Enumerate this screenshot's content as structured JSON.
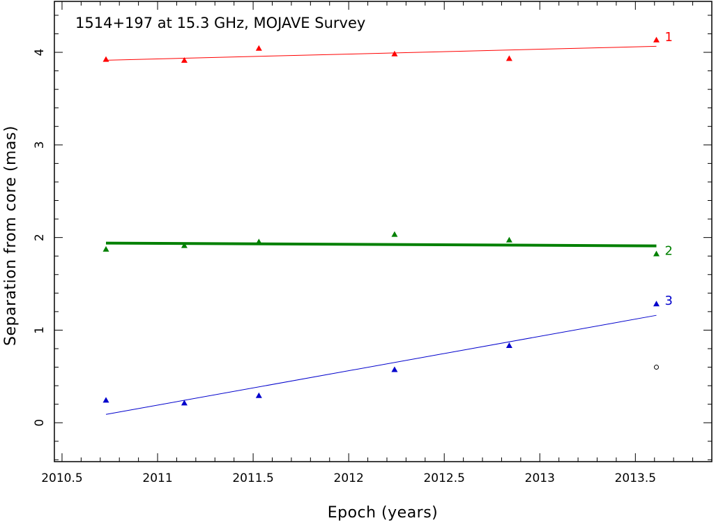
{
  "chart_data": {
    "type": "scatter",
    "title": "1514+197 at 15.3 GHz, MOJAVE Survey",
    "xlabel": "Epoch (years)",
    "ylabel": "Separation from core (mas)",
    "xlim": [
      2010.46,
      2013.9
    ],
    "ylim": [
      -0.42,
      4.55
    ],
    "x_ticks": [
      2010.5,
      2011,
      2011.5,
      2012,
      2012.5,
      2013,
      2013.5
    ],
    "x_tick_labels": [
      "2010.5",
      "2011",
      "2011.5",
      "2012",
      "2012.5",
      "2013",
      "2013.5"
    ],
    "y_ticks": [
      0,
      1,
      2,
      3,
      4
    ],
    "y_tick_labels": [
      "0",
      "1",
      "2",
      "3",
      "4"
    ],
    "series": [
      {
        "label": "1",
        "color": "#ff0000",
        "marker": "triangle",
        "x": [
          2010.73,
          2011.14,
          2011.53,
          2012.24,
          2012.84,
          2013.61
        ],
        "y": [
          3.92,
          3.91,
          4.04,
          3.98,
          3.93,
          4.13
        ],
        "fit": {
          "x": [
            2010.73,
            2013.61
          ],
          "y": [
            3.915,
            4.065
          ],
          "width": 1
        }
      },
      {
        "label": "2",
        "color": "#008000",
        "marker": "triangle",
        "x": [
          2010.73,
          2011.14,
          2011.53,
          2012.24,
          2012.84,
          2013.61
        ],
        "y": [
          1.87,
          1.91,
          1.95,
          2.03,
          1.97,
          1.82
        ],
        "fit": {
          "x": [
            2010.73,
            2013.61
          ],
          "y": [
            1.94,
            1.91
          ],
          "width": 4
        }
      },
      {
        "label": "3",
        "color": "#0000cc",
        "marker": "triangle",
        "x": [
          2010.73,
          2011.14,
          2011.53,
          2012.24,
          2012.84,
          2013.61
        ],
        "y": [
          0.24,
          0.21,
          0.29,
          0.57,
          0.83,
          1.28
        ],
        "fit": {
          "x": [
            2010.73,
            2013.61
          ],
          "y": [
            0.09,
            1.16
          ],
          "width": 1
        }
      }
    ],
    "extra_points": [
      {
        "x": 2013.61,
        "y": 0.6,
        "marker": "open-circle",
        "color": "#000000"
      }
    ],
    "grid": false,
    "legend": "none"
  }
}
